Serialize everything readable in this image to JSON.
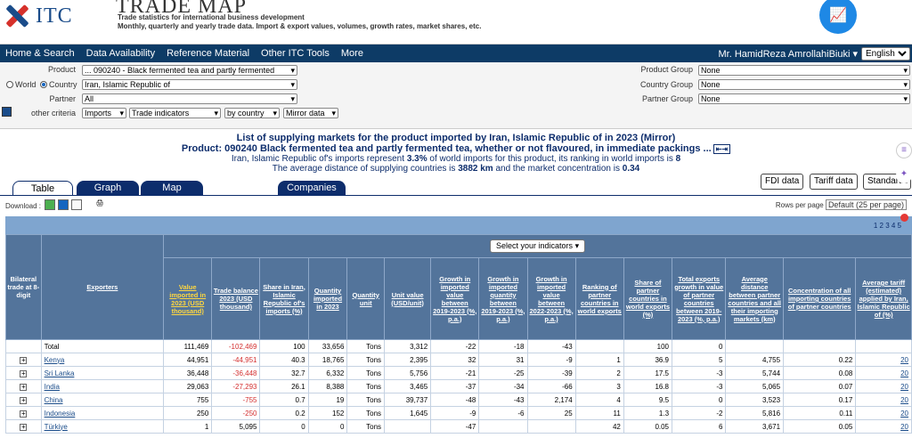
{
  "header": {
    "logo_text": "ITC",
    "app_title": "TRADE MAP",
    "subtitle1": "Trade statistics for international business development",
    "subtitle2": "Monthly, quarterly and yearly trade data. Import & export values, volumes, growth rates, market shares, etc."
  },
  "nav": {
    "items": [
      "Home & Search",
      "Data Availability",
      "Reference Material",
      "Other ITC Tools",
      "More"
    ],
    "user": "Mr. HamidReza AmrollahiBiuki",
    "language": "English"
  },
  "criteria": {
    "product_label": "Product",
    "product_value": "... 090240 - Black fermented tea and partly fermented",
    "world_label": "World",
    "country_radio_label": "Country",
    "country_value": "Iran, Islamic Republic of",
    "partner_label": "Partner",
    "partner_value": "All",
    "other_label": "other criteria",
    "flow": "Imports",
    "indicator_type": "Trade indicators",
    "breakdown": "by country",
    "mirror": "Mirror data",
    "product_group_label": "Product Group",
    "product_group_value": "None",
    "country_group_label": "Country Group",
    "country_group_value": "None",
    "partner_group_label": "Partner Group",
    "partner_group_value": "None"
  },
  "title": {
    "line1": "List of supplying markets for the product imported by Iran, Islamic Republic of in 2023 (Mirror)",
    "line2": "Product: 090240 Black fermented tea and partly fermented tea, whether or not flavoured, in immediate packings ...",
    "line3_pre": "Iran, Islamic Republic of's imports represent",
    "line3_pct": "3.3%",
    "line3_mid": "of world imports for this product, its ranking in world imports is",
    "line3_rank": "8",
    "line4_pre": "The average distance of supplying countries is",
    "line4_km": "3882 km",
    "line4_mid": "and the market concentration is",
    "line4_conc": "0.34"
  },
  "tabs": [
    "Table",
    "Graph",
    "Map",
    "Companies"
  ],
  "right_buttons": [
    "FDI data",
    "Tariff data",
    "Standards"
  ],
  "download_label": "Download :",
  "rows_per_page_label": "Rows per page",
  "rows_per_page_value": "Default (25 per page)",
  "pager": "1 2 3 4 5",
  "select_indicators": "Select your indicators",
  "columns": {
    "bilateral": "Bilateral trade at 8-digit",
    "exporters": "Exporters",
    "value": "Value imported in 2023 (USD thousand)",
    "balance": "Trade balance 2023 (USD thousand)",
    "share": "Share in Iran, Islamic Republic of's imports (%)",
    "qty": "Quantity imported in 2023",
    "qty_unit": "Quantity unit",
    "unit_value": "Unit value (USD/unit)",
    "g_value": "Growth in imported value between 2019-2023 (%, p.a.)",
    "g_qty": "Growth in imported quantity between 2019-2023 (%, p.a.)",
    "g_value_22": "Growth in imported value between 2022-2023 (%, p.a.)",
    "rank": "Ranking of partner countries in world exports",
    "share_world": "Share of partner countries in world exports (%)",
    "total_exports_growth": "Total exports growth in value of partner countries between 2019-2023 (%, p.a.)",
    "avg_distance": "Average distance between partner countries and all their importing markets (km)",
    "concentration": "Concentration of all importing countries of partner countries",
    "tariff": "Average tariff (estimated) applied by Iran, Islamic Republic of (%)"
  },
  "rows": [
    {
      "name": "Total",
      "value": "111,469",
      "balance": "-102,469",
      "share": "100",
      "qty": "33,656",
      "unit": "Tons",
      "uv": "3,312",
      "g1": "-22",
      "g2": "-18",
      "g3": "-43",
      "rank": "",
      "sw": "100",
      "teg": "0",
      "dist": "",
      "conc": "",
      "tariff": ""
    },
    {
      "name": "Kenya",
      "value": "44,951",
      "balance": "-44,951",
      "share": "40.3",
      "qty": "18,765",
      "unit": "Tons",
      "uv": "2,395",
      "g1": "32",
      "g2": "31",
      "g3": "-9",
      "rank": "1",
      "sw": "36.9",
      "teg": "5",
      "dist": "4,755",
      "conc": "0.22",
      "tariff": "20"
    },
    {
      "name": "Sri Lanka",
      "value": "36,448",
      "balance": "-36,448",
      "share": "32.7",
      "qty": "6,332",
      "unit": "Tons",
      "uv": "5,756",
      "g1": "-21",
      "g2": "-25",
      "g3": "-39",
      "rank": "2",
      "sw": "17.5",
      "teg": "-3",
      "dist": "5,744",
      "conc": "0.08",
      "tariff": "20"
    },
    {
      "name": "India",
      "value": "29,063",
      "balance": "-27,293",
      "share": "26.1",
      "qty": "8,388",
      "unit": "Tons",
      "uv": "3,465",
      "g1": "-37",
      "g2": "-34",
      "g3": "-66",
      "rank": "3",
      "sw": "16.8",
      "teg": "-3",
      "dist": "5,065",
      "conc": "0.07",
      "tariff": "20"
    },
    {
      "name": "China",
      "value": "755",
      "balance": "-755",
      "share": "0.7",
      "qty": "19",
      "unit": "Tons",
      "uv": "39,737",
      "g1": "-48",
      "g2": "-43",
      "g3": "2,174",
      "rank": "4",
      "sw": "9.5",
      "teg": "0",
      "dist": "3,523",
      "conc": "0.17",
      "tariff": "20"
    },
    {
      "name": "Indonesia",
      "value": "250",
      "balance": "-250",
      "share": "0.2",
      "qty": "152",
      "unit": "Tons",
      "uv": "1,645",
      "g1": "-9",
      "g2": "-6",
      "g3": "25",
      "rank": "11",
      "sw": "1.3",
      "teg": "-2",
      "dist": "5,816",
      "conc": "0.11",
      "tariff": "20"
    },
    {
      "name": "Türkiye",
      "value": "1",
      "balance": "5,095",
      "share": "0",
      "qty": "0",
      "unit": "Tons",
      "uv": "",
      "g1": "-47",
      "g2": "",
      "g3": "",
      "rank": "42",
      "sw": "0.05",
      "teg": "6",
      "dist": "3,671",
      "conc": "0.05",
      "tariff": "20"
    }
  ]
}
